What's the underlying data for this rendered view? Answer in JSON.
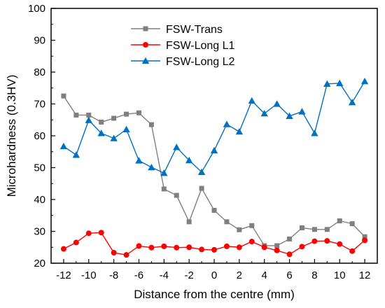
{
  "chart_data": {
    "type": "line",
    "xlabel": "Distance from the centre (mm)",
    "ylabel": "Microhardness (0.3HV)",
    "xlim": [
      -13,
      13
    ],
    "ylim": [
      20,
      100
    ],
    "xticks": [
      -12,
      -10,
      -8,
      -6,
      -4,
      -2,
      0,
      2,
      4,
      6,
      8,
      10,
      12
    ],
    "yticks": [
      20,
      30,
      40,
      50,
      60,
      70,
      80,
      90,
      100
    ],
    "grid": false,
    "legend_position": "top-center",
    "x": [
      -12,
      -11,
      -10,
      -9,
      -8,
      -7,
      -6,
      -5,
      -4,
      -3,
      -2,
      -1,
      0,
      1,
      2,
      3,
      4,
      5,
      6,
      7,
      8,
      9,
      10,
      11,
      12
    ],
    "series": [
      {
        "name": "FSW-Trans",
        "color": "#7f7f7f",
        "marker": "square",
        "values": [
          72.5,
          66.5,
          66.5,
          64.3,
          65.5,
          66.8,
          67.2,
          63.5,
          43.3,
          41.3,
          33.0,
          43.5,
          36.6,
          33.0,
          30.5,
          31.8,
          25.5,
          25.5,
          27.6,
          31.1,
          30.6,
          30.6,
          33.3,
          32.4,
          28.3
        ]
      },
      {
        "name": "FSW-Long L1",
        "color": "#ff0000",
        "marker": "circle",
        "values": [
          24.5,
          26.5,
          29.4,
          29.6,
          23.3,
          22.6,
          25.4,
          24.9,
          25.3,
          24.9,
          25.0,
          24.3,
          24.2,
          25.3,
          25.0,
          26.8,
          25.0,
          24.0,
          22.8,
          25.2,
          26.9,
          27.0,
          26.0,
          23.8,
          27.2
        ]
      },
      {
        "name": "FSW-Long L2",
        "color": "#0070c0",
        "marker": "triangle",
        "values": [
          56.7,
          54.0,
          64.9,
          60.8,
          59.2,
          62.0,
          52.2,
          50.1,
          48.3,
          56.4,
          52.3,
          48.6,
          55.4,
          63.6,
          61.3,
          71.0,
          67.0,
          70.0,
          66.2,
          67.6,
          60.8,
          76.3,
          76.5,
          70.5,
          77.1
        ]
      }
    ]
  }
}
